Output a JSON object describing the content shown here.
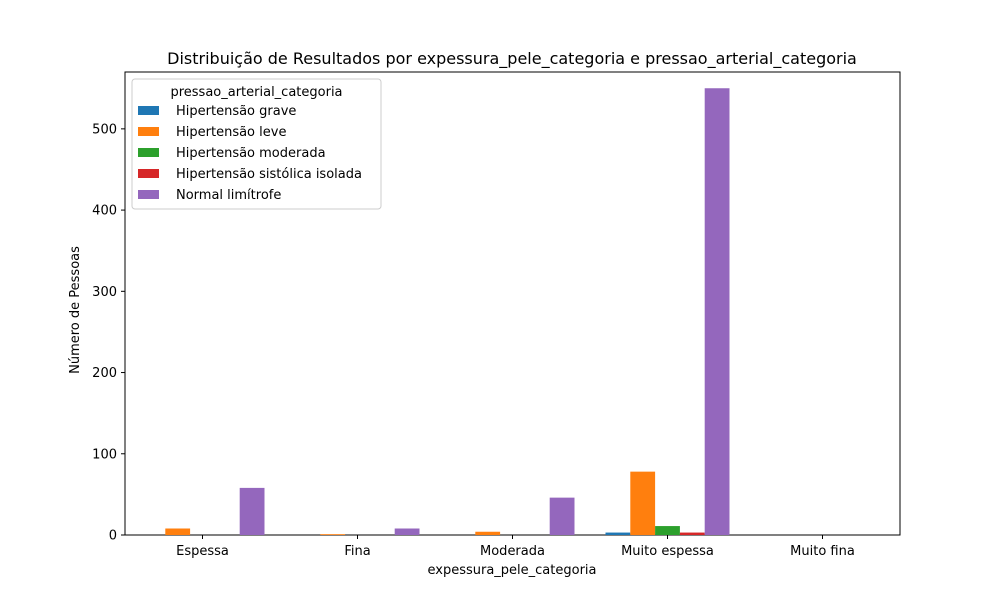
{
  "chart_data": {
    "type": "bar",
    "title": "Distribuição de Resultados por expessura_pele_categoria e pressao_arterial_categoria",
    "xlabel": "expessura_pele_categoria",
    "ylabel": "Número de Pessoas",
    "categories": [
      "Espessa",
      "Fina",
      "Moderada",
      "Muito espessa",
      "Muito fina"
    ],
    "ylim": [
      0,
      570
    ],
    "yticks": [
      0,
      100,
      200,
      300,
      400,
      500
    ],
    "grid": false,
    "legend": {
      "title": "pressao_arterial_categoria",
      "placement": "top-left"
    },
    "series": [
      {
        "name": "Hipertensão grave",
        "color": "#1f77b4",
        "values": [
          0,
          0,
          0,
          3,
          0
        ]
      },
      {
        "name": "Hipertensão leve",
        "color": "#ff7f0e",
        "values": [
          8,
          1,
          4,
          78,
          0
        ]
      },
      {
        "name": "Hipertensão moderada",
        "color": "#2ca02c",
        "values": [
          0,
          0,
          0,
          11,
          0
        ]
      },
      {
        "name": "Hipertensão sistólica isolada",
        "color": "#d62728",
        "values": [
          0,
          0,
          0,
          3,
          0
        ]
      },
      {
        "name": "Normal limítrofe",
        "color": "#9467bd",
        "values": [
          58,
          8,
          46,
          550,
          0
        ]
      }
    ]
  }
}
